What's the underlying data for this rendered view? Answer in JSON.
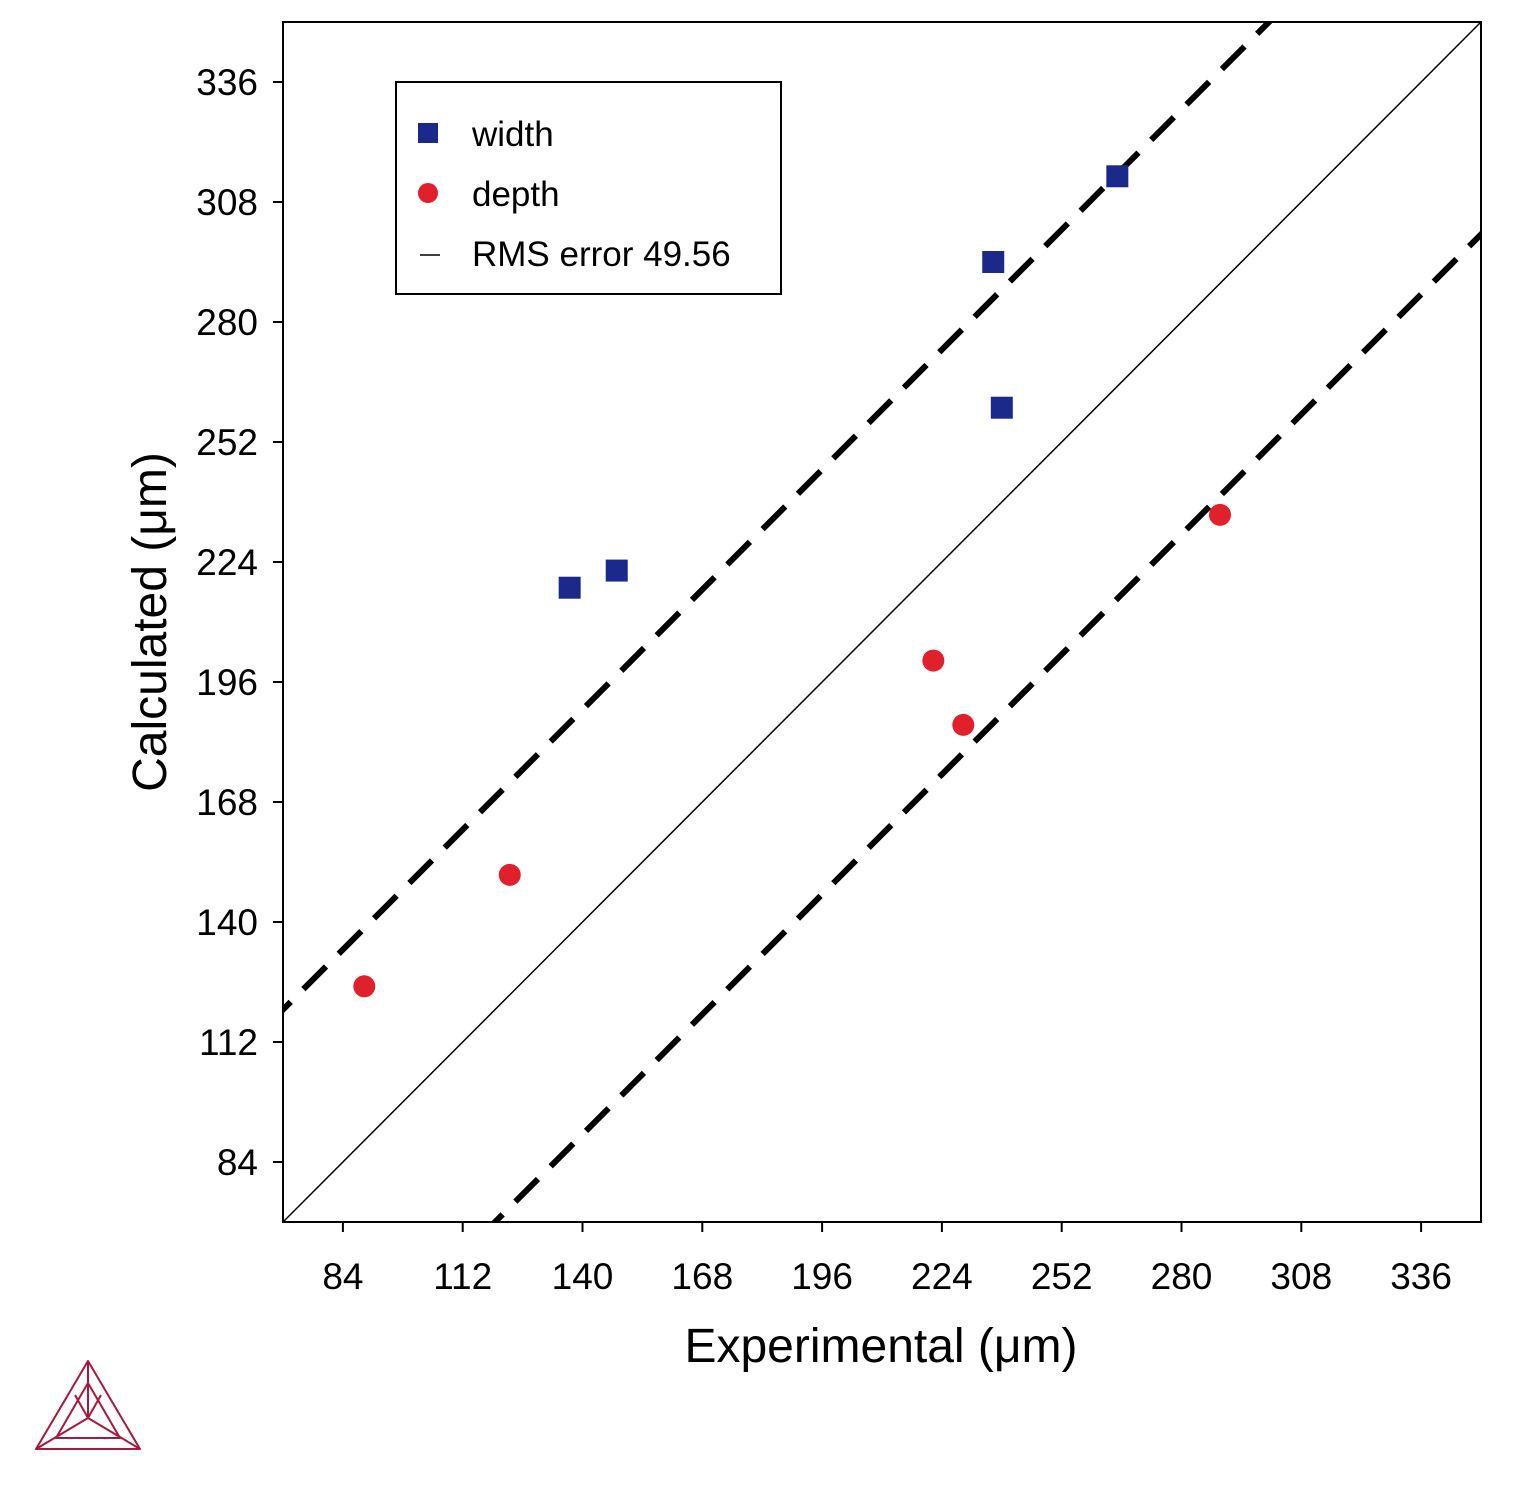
{
  "chart_data": {
    "type": "scatter",
    "xlabel": "Experimental (μm)",
    "ylabel": "Calculated (μm)",
    "xlim": [
      70,
      350
    ],
    "ylim": [
      70,
      350
    ],
    "xticks": [
      84,
      112,
      140,
      168,
      196,
      224,
      252,
      280,
      308,
      336
    ],
    "yticks": [
      84,
      112,
      140,
      168,
      196,
      224,
      252,
      280,
      308,
      336
    ],
    "grid": false,
    "legend_position": "top-left",
    "series": [
      {
        "name": "width",
        "marker": "square",
        "color": "#1b2a8a",
        "points": [
          [
            137,
            218
          ],
          [
            148,
            222
          ],
          [
            236,
            294
          ],
          [
            238,
            260
          ],
          [
            265,
            314
          ]
        ]
      },
      {
        "name": "depth",
        "marker": "circle",
        "color": "#e0202a",
        "points": [
          [
            89,
            125
          ],
          [
            123,
            151
          ],
          [
            222,
            201
          ],
          [
            229,
            186
          ],
          [
            289,
            235
          ]
        ]
      }
    ],
    "reference_lines": [
      {
        "name": "RMS error 49.56",
        "style": "solid",
        "color": "#000000",
        "slope": 1,
        "offset": 0
      },
      {
        "style": "dashed",
        "color": "#000000",
        "slope": 1,
        "offset": 49.56
      },
      {
        "style": "dashed",
        "color": "#000000",
        "slope": 1,
        "offset": -49.56
      }
    ]
  },
  "logo": {
    "name": "thermo-calc-logo",
    "color": "#a8183c"
  }
}
